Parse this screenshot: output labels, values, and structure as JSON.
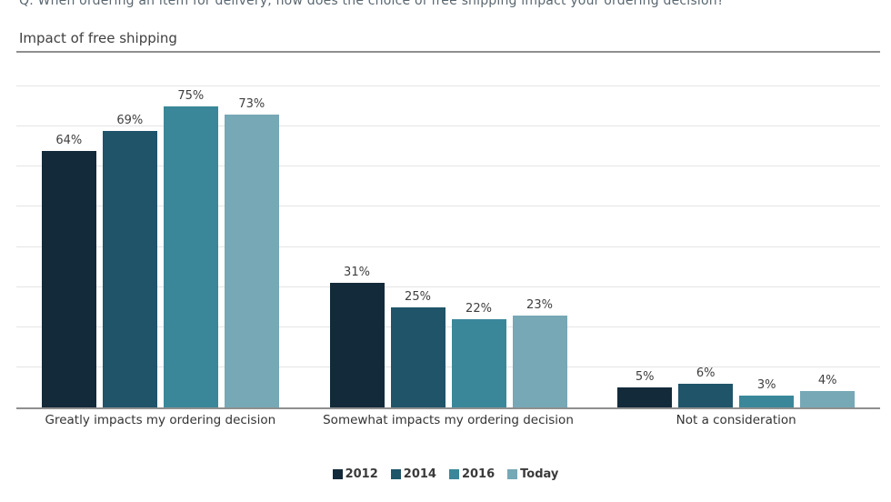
{
  "question": "Q. When ordering an item for delivery, how does the choice of free shipping impact your ordering decision?",
  "title": "Impact of free shipping",
  "chart_data": {
    "type": "bar",
    "title": "Impact of free shipping",
    "categories": [
      "Greatly impacts my ordering decision",
      "Somewhat impacts my ordering decision",
      "Not a consideration"
    ],
    "series": [
      {
        "name": "2012",
        "color": "#132a3a",
        "values": [
          64,
          31,
          5
        ]
      },
      {
        "name": "2014",
        "color": "#1f5469",
        "values": [
          69,
          25,
          6
        ]
      },
      {
        "name": "2016",
        "color": "#3a8799",
        "values": [
          75,
          22,
          3
        ]
      },
      {
        "name": "Today",
        "color": "#77a8b6",
        "values": [
          73,
          23,
          4
        ]
      }
    ],
    "value_suffix": "%",
    "xlabel": "",
    "ylabel": "",
    "ylim": [
      0,
      80
    ],
    "gridline_step": 10,
    "grid": true,
    "y_tick_labels_visible": false,
    "legend_position": "bottom"
  },
  "colors": {
    "background": "#ffffff",
    "gridline": "#e5e5e5",
    "axis": "#8f8f8f",
    "question_text": "#5a6770",
    "title_text": "#404040",
    "label_text": "#3f3f3f"
  }
}
